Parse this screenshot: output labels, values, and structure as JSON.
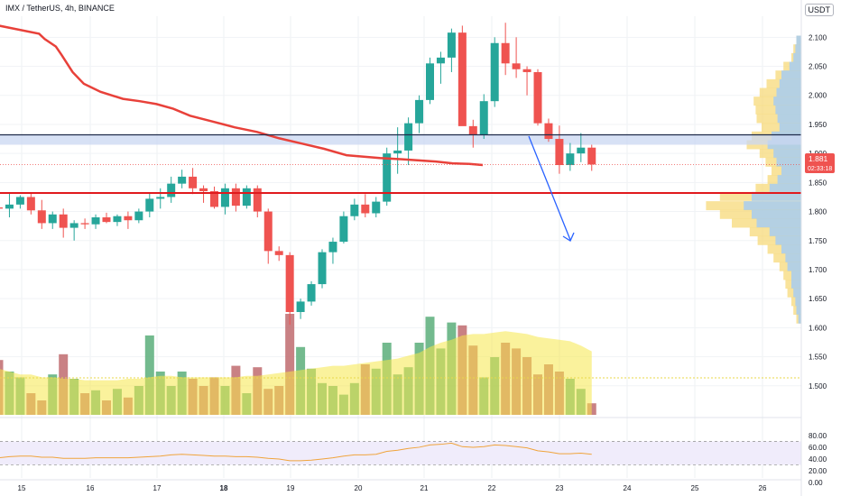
{
  "header": {
    "title": "IMX / TetherUS, 4h, BINANCE"
  },
  "currency_label": "USDT",
  "price_badge": {
    "price": "1.881",
    "countdown": "02:33:18"
  },
  "colors": {
    "up": "#26a69a",
    "down": "#ef5350",
    "ma": "#e8413a",
    "zone": "#c9d7f2",
    "resistance": "#1e2b4a",
    "support": "#e0191d",
    "arrow": "#2962ff",
    "vp_blue": "#a8cdf0",
    "vp_yellow": "#f7d97a",
    "rsi": "#f0a43c"
  },
  "chart_data": {
    "type": "candlestick",
    "title": "IMX / TetherUS, 4h, BINANCE",
    "x_ticks": [
      "15",
      "16",
      "17",
      "18",
      "19",
      "20",
      "21",
      "22",
      "23",
      "24",
      "25",
      "26"
    ],
    "price_axis": {
      "min": 1.45,
      "max": 2.13,
      "ticks": [
        "2.100",
        "2.050",
        "2.000",
        "1.950",
        "1.900",
        "1.850",
        "1.800",
        "1.750",
        "1.700",
        "1.650",
        "1.600",
        "1.550",
        "1.500"
      ]
    },
    "rsi_axis": {
      "ticks": [
        "80.00",
        "60.00",
        "40.00",
        "20.00",
        "0.00"
      ]
    },
    "candles": [
      [
        1.807,
        1.815,
        1.775,
        1.805
      ],
      [
        1.805,
        1.832,
        1.79,
        1.812
      ],
      [
        1.812,
        1.828,
        1.805,
        1.825
      ],
      [
        1.825,
        1.832,
        1.795,
        1.802
      ],
      [
        1.802,
        1.82,
        1.77,
        1.78
      ],
      [
        1.78,
        1.8,
        1.77,
        1.795
      ],
      [
        1.795,
        1.805,
        1.755,
        1.772
      ],
      [
        1.772,
        1.785,
        1.75,
        1.78
      ],
      [
        1.78,
        1.788,
        1.77,
        1.778
      ],
      [
        1.778,
        1.795,
        1.77,
        1.79
      ],
      [
        1.79,
        1.798,
        1.78,
        1.782
      ],
      [
        1.782,
        1.795,
        1.775,
        1.792
      ],
      [
        1.792,
        1.8,
        1.77,
        1.785
      ],
      [
        1.785,
        1.805,
        1.78,
        1.8
      ],
      [
        1.8,
        1.832,
        1.79,
        1.822
      ],
      [
        1.822,
        1.84,
        1.805,
        1.825
      ],
      [
        1.825,
        1.86,
        1.815,
        1.848
      ],
      [
        1.848,
        1.872,
        1.84,
        1.86
      ],
      [
        1.86,
        1.875,
        1.83,
        1.84
      ],
      [
        1.84,
        1.845,
        1.815,
        1.835
      ],
      [
        1.835,
        1.843,
        1.805,
        1.808
      ],
      [
        1.808,
        1.848,
        1.795,
        1.84
      ],
      [
        1.84,
        1.848,
        1.8,
        1.81
      ],
      [
        1.81,
        1.845,
        1.805,
        1.84
      ],
      [
        1.84,
        1.845,
        1.79,
        1.8
      ],
      [
        1.8,
        1.805,
        1.71,
        1.732
      ],
      [
        1.732,
        1.74,
        1.715,
        1.725
      ],
      [
        1.725,
        1.73,
        1.605,
        1.627
      ],
      [
        1.627,
        1.65,
        1.615,
        1.645
      ],
      [
        1.645,
        1.68,
        1.638,
        1.675
      ],
      [
        1.675,
        1.735,
        1.668,
        1.73
      ],
      [
        1.73,
        1.755,
        1.71,
        1.748
      ],
      [
        1.748,
        1.8,
        1.745,
        1.792
      ],
      [
        1.792,
        1.822,
        1.785,
        1.812
      ],
      [
        1.812,
        1.83,
        1.79,
        1.797
      ],
      [
        1.797,
        1.825,
        1.79,
        1.817
      ],
      [
        1.817,
        1.91,
        1.81,
        1.9
      ],
      [
        1.9,
        1.945,
        1.865,
        1.905
      ],
      [
        1.905,
        1.962,
        1.88,
        1.952
      ],
      [
        1.952,
        2.0,
        1.935,
        1.992
      ],
      [
        1.992,
        2.065,
        1.985,
        2.055
      ],
      [
        2.055,
        2.075,
        2.02,
        2.065
      ],
      [
        2.065,
        2.115,
        2.04,
        2.108
      ],
      [
        2.108,
        2.12,
        1.95,
        1.947
      ],
      [
        1.947,
        1.958,
        1.91,
        1.932
      ],
      [
        1.932,
        2.002,
        1.925,
        1.99
      ],
      [
        1.99,
        2.1,
        1.98,
        2.09
      ],
      [
        2.09,
        2.125,
        2.035,
        2.055
      ],
      [
        2.055,
        2.1,
        2.03,
        2.045
      ],
      [
        2.045,
        2.05,
        2.0,
        2.04
      ],
      [
        2.04,
        2.045,
        1.948,
        1.952
      ],
      [
        1.952,
        1.96,
        1.92,
        1.925
      ],
      [
        1.925,
        1.948,
        1.865,
        1.88
      ],
      [
        1.88,
        1.918,
        1.87,
        1.9
      ],
      [
        1.9,
        1.935,
        1.885,
        1.91
      ],
      [
        1.91,
        1.915,
        1.87,
        1.881
      ]
    ],
    "volumes": [
      38,
      30,
      26,
      15,
      10,
      28,
      42,
      25,
      15,
      17,
      10,
      18,
      12,
      20,
      55,
      30,
      20,
      30,
      25,
      20,
      26,
      20,
      34,
      15,
      33,
      18,
      20,
      70,
      47,
      32,
      22,
      20,
      14,
      22,
      35,
      32,
      50,
      28,
      33,
      50,
      68,
      46,
      64,
      62,
      48,
      26,
      40,
      50,
      46,
      40,
      28,
      35,
      30,
      25,
      18,
      8
    ],
    "volume_ma": [
      32,
      30,
      28,
      28,
      26,
      26,
      25,
      25,
      24,
      24,
      24,
      24,
      25,
      25,
      26,
      27,
      27,
      26,
      26,
      26,
      26,
      26,
      26,
      27,
      27,
      28,
      29,
      30,
      31,
      32,
      33,
      34,
      34,
      35,
      36,
      37,
      38,
      39,
      41,
      43,
      47,
      50,
      52,
      55,
      56,
      56,
      57,
      58,
      57,
      56,
      54,
      53,
      52,
      51,
      48,
      44
    ],
    "rsi": [
      42,
      44,
      45,
      45,
      43,
      43,
      41,
      41,
      41,
      42,
      42,
      42,
      42,
      43,
      44,
      45,
      47,
      48,
      47,
      46,
      45,
      45,
      44,
      44,
      43,
      41,
      40,
      37,
      37,
      38,
      40,
      42,
      45,
      47,
      47,
      48,
      53,
      55,
      58,
      60,
      64,
      65,
      67,
      61,
      60,
      61,
      64,
      63,
      61,
      59,
      54,
      52,
      49,
      49,
      50,
      48
    ],
    "moving_average": [
      [
        -1,
        2.12
      ],
      [
        35,
        2.106
      ],
      [
        40,
        2.097
      ],
      [
        50,
        2.084
      ],
      [
        55,
        2.07
      ],
      [
        65,
        2.04
      ],
      [
        75,
        2.02
      ],
      [
        90,
        2.006
      ],
      [
        110,
        1.994
      ],
      [
        125,
        1.99
      ],
      [
        140,
        1.985
      ],
      [
        155,
        1.977
      ],
      [
        170,
        1.965
      ],
      [
        190,
        1.955
      ],
      [
        210,
        1.945
      ],
      [
        230,
        1.937
      ],
      [
        250,
        1.926
      ],
      [
        270,
        1.917
      ],
      [
        290,
        1.908
      ],
      [
        310,
        1.897
      ],
      [
        340,
        1.892
      ],
      [
        360,
        1.89
      ],
      [
        390,
        1.886
      ],
      [
        405,
        1.883
      ],
      [
        420,
        1.882
      ],
      [
        432,
        1.88
      ]
    ],
    "resistance_zone": [
      1.915,
      1.932
    ],
    "resistance_line": 1.932,
    "support_line": 1.832,
    "current_price": 1.881,
    "volume_profile": [
      [
        2.095,
        0.05,
        0.05
      ],
      [
        2.08,
        0.08,
        0.06
      ],
      [
        2.065,
        0.1,
        0.08
      ],
      [
        2.05,
        0.18,
        0.12
      ],
      [
        2.035,
        0.26,
        0.2
      ],
      [
        2.02,
        0.35,
        0.22
      ],
      [
        2.005,
        0.42,
        0.25
      ],
      [
        1.99,
        0.48,
        0.28
      ],
      [
        1.975,
        0.46,
        0.26
      ],
      [
        1.96,
        0.45,
        0.24
      ],
      [
        1.945,
        0.4,
        0.22
      ],
      [
        1.93,
        0.5,
        0.3
      ],
      [
        1.915,
        0.55,
        0.34
      ],
      [
        1.9,
        0.42,
        0.28
      ],
      [
        1.885,
        0.36,
        0.25
      ],
      [
        1.87,
        0.3,
        0.2
      ],
      [
        1.855,
        0.34,
        0.24
      ],
      [
        1.84,
        0.46,
        0.32
      ],
      [
        1.826,
        0.82,
        0.5
      ],
      [
        1.81,
        0.96,
        0.58
      ],
      [
        1.795,
        0.82,
        0.5
      ],
      [
        1.78,
        0.7,
        0.45
      ],
      [
        1.765,
        0.52,
        0.32
      ],
      [
        1.75,
        0.44,
        0.26
      ],
      [
        1.735,
        0.34,
        0.2
      ],
      [
        1.72,
        0.28,
        0.16
      ],
      [
        1.705,
        0.22,
        0.14
      ],
      [
        1.69,
        0.18,
        0.1
      ],
      [
        1.675,
        0.16,
        0.1
      ],
      [
        1.66,
        0.14,
        0.08
      ],
      [
        1.645,
        0.1,
        0.06
      ],
      [
        1.63,
        0.08,
        0.05
      ],
      [
        1.615,
        0.05,
        0.03
      ]
    ]
  }
}
